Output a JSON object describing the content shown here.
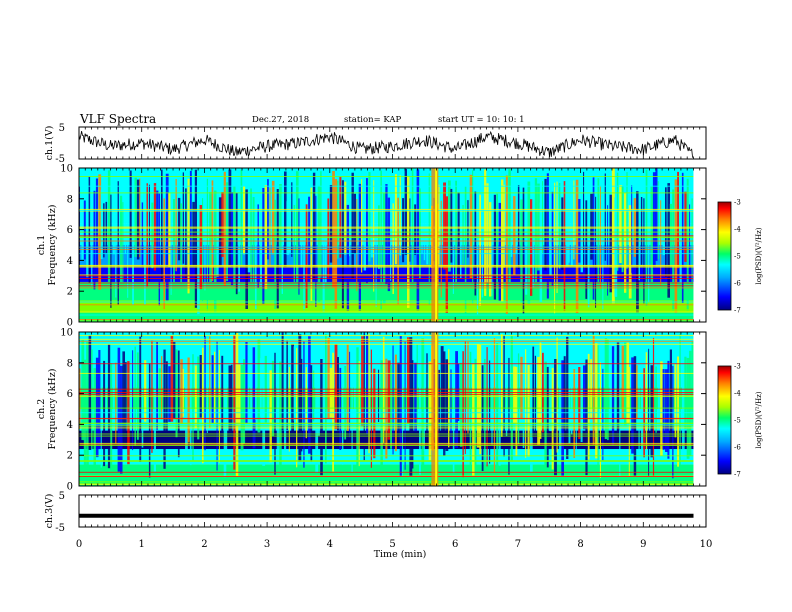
{
  "header": {
    "title": "VLF Spectra",
    "date": "Dec.27, 2018",
    "station": "station= KAP",
    "start": "start UT =  10: 10: 1"
  },
  "chart_data": [
    {
      "type": "line",
      "panel": "ch1-waveform",
      "ylabel": "ch.1(V)",
      "ylim": [
        -5,
        5
      ],
      "yticks": [
        "5",
        "-5"
      ],
      "x": [
        0,
        0.5,
        1,
        1.5,
        2,
        2.5,
        3,
        3.5,
        4,
        4.5,
        5,
        5.5,
        6,
        6.5,
        7,
        7.5,
        8,
        8.5,
        9,
        9.5,
        9.8
      ],
      "values": [
        2,
        -1,
        0,
        -2,
        1,
        -3,
        -1,
        0,
        2,
        -2,
        -1,
        1,
        -2,
        2,
        0,
        -3,
        1,
        -1,
        -2,
        1,
        -4
      ],
      "xlim": [
        0,
        10
      ]
    },
    {
      "type": "heatmap",
      "panel": "ch1-spectrogram",
      "ylabel": "ch.1\nFrequency (kHz)",
      "ylim": [
        0,
        10
      ],
      "yticks": [
        "0",
        "2",
        "4",
        "6",
        "8",
        "10"
      ],
      "xlim": [
        0,
        10
      ],
      "colorbar": {
        "label": "log(PSD)(V²/Hz)",
        "range": [
          -7,
          -3
        ],
        "ticks": [
          "-3",
          "-4",
          "-5",
          "-6",
          "-7"
        ]
      }
    },
    {
      "type": "heatmap",
      "panel": "ch2-spectrogram",
      "ylabel": "ch.2\nFrequency (kHz)",
      "ylim": [
        0,
        10
      ],
      "yticks": [
        "0",
        "2",
        "4",
        "6",
        "8",
        "10"
      ],
      "xlim": [
        0,
        10
      ],
      "colorbar": {
        "label": "log(PSD)(V²/Hz)",
        "range": [
          -7,
          -3
        ],
        "ticks": [
          "-3",
          "-4",
          "-5",
          "-6",
          "-7"
        ]
      }
    },
    {
      "type": "line",
      "panel": "ch3-waveform",
      "ylabel": "ch.3(V)",
      "ylim": [
        -5,
        5
      ],
      "yticks": [
        "5",
        "-5"
      ],
      "x": [
        0,
        9.8
      ],
      "values": [
        -1.5,
        -1.5
      ],
      "xlim": [
        0,
        10
      ]
    }
  ],
  "xaxis": {
    "label": "Time (min)",
    "ticks": [
      "0",
      "1",
      "2",
      "3",
      "4",
      "5",
      "6",
      "7",
      "8",
      "9",
      "10"
    ]
  },
  "colors": {
    "wave": "#000000",
    "scale": [
      "#000080",
      "#0000ff",
      "#00a0ff",
      "#00ffff",
      "#00ff80",
      "#80ff00",
      "#ffff00",
      "#ff8000",
      "#ff0000",
      "#800000"
    ]
  }
}
